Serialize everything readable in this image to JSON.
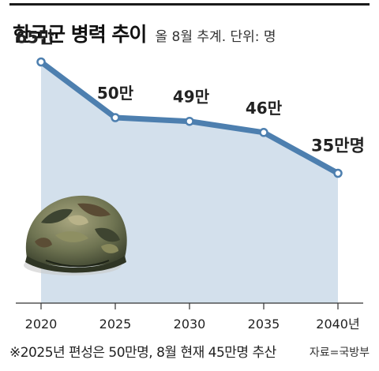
{
  "header": {
    "title": "한국군 병력 추이",
    "subtitle": "올 8월 추계. 단위: 명"
  },
  "colors": {
    "line": "#4d7faf",
    "area": "#d3e0ec",
    "marker_fill": "#ffffff",
    "text": "#222222"
  },
  "icons": {
    "decoration": "military-helmet-icon"
  },
  "chart_data": {
    "type": "area",
    "categories": [
      "2020",
      "2025",
      "2030",
      "2035",
      "2040년"
    ],
    "values": [
      65,
      50,
      49,
      46,
      35
    ],
    "units": "만명",
    "data_labels": [
      "65만",
      "50만",
      "49만",
      "46만",
      "35만명"
    ],
    "ylim": [
      0,
      70
    ],
    "grid": false,
    "legend": "none"
  },
  "footer": {
    "note": "※2025년 편성은 50만명, 8월 현재 45만명 추산",
    "source": "자료=국방부"
  }
}
